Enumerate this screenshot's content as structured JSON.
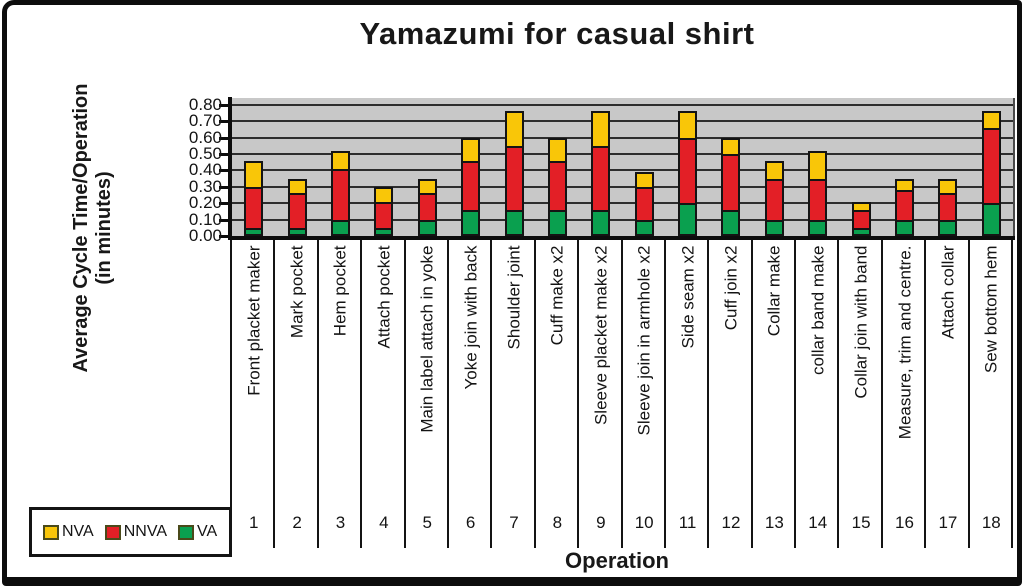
{
  "title": "Yamazumi for casual shirt",
  "y_axis": {
    "title_line1": "Average Cycle Time/Operation",
    "title_line2": "(in minutes)",
    "tick_labels": [
      "0.00",
      "0.10",
      "0.20",
      "0.30",
      "0.40",
      "0.50",
      "0.60",
      "0.70",
      "0.80"
    ]
  },
  "x_axis": {
    "title": "Operation",
    "numbers": [
      "1",
      "2",
      "3",
      "4",
      "5",
      "6",
      "7",
      "8",
      "9",
      "10",
      "11",
      "12",
      "13",
      "14",
      "15",
      "16",
      "17",
      "18"
    ]
  },
  "legend": [
    {
      "label": "NVA",
      "color": "#f9c608"
    },
    {
      "label": "NNVA",
      "color": "#e31f26"
    },
    {
      "label": "VA",
      "color": "#0aa04f"
    }
  ],
  "colors": {
    "plot_background": "#c8c8c8",
    "gridline": "#2d2d2d",
    "bar_border": "#141414",
    "nva_yellow": "#f9c608",
    "nnva_red": "#e31f26",
    "va_green": "#0aa04f"
  },
  "chart_data": {
    "type": "bar",
    "stacked": true,
    "title": "Yamazumi for casual shirt",
    "xlabel": "Operation",
    "ylabel": "Average Cycle Time/Operation (in minutes)",
    "ylim": [
      0,
      0.8
    ],
    "ytick_step": 0.1,
    "grid": true,
    "legend_position": "bottom-left",
    "categories": [
      "Front placket maker",
      "Mark pocket",
      "Hem pocket",
      "Attach pocket",
      "Main label attach in yoke",
      "Yoke join with back",
      "Shoulder joint",
      "Cuff make x2",
      "Sleeve placket make x2",
      "Sleeve join in armhole x2",
      "Side seam x2",
      "Cuff join x2",
      "Collar make",
      "collar band make",
      "Collar join with band",
      "Measure, trim and centre.",
      "Attach collar",
      "Sew bottom hem"
    ],
    "series": [
      {
        "name": "VA",
        "color": "#0aa04f",
        "values": [
          0.05,
          0.05,
          0.1,
          0.05,
          0.1,
          0.16,
          0.16,
          0.16,
          0.16,
          0.1,
          0.2,
          0.16,
          0.1,
          0.1,
          0.05,
          0.1,
          0.1,
          0.2
        ]
      },
      {
        "name": "NNVA",
        "color": "#e31f26",
        "values": [
          0.25,
          0.21,
          0.31,
          0.16,
          0.16,
          0.3,
          0.39,
          0.3,
          0.39,
          0.2,
          0.4,
          0.34,
          0.25,
          0.25,
          0.11,
          0.18,
          0.16,
          0.46
        ]
      },
      {
        "name": "NVA",
        "color": "#f9c608",
        "values": [
          0.16,
          0.09,
          0.11,
          0.09,
          0.09,
          0.14,
          0.21,
          0.14,
          0.21,
          0.09,
          0.16,
          0.1,
          0.11,
          0.17,
          0.05,
          0.07,
          0.09,
          0.1
        ]
      }
    ]
  }
}
